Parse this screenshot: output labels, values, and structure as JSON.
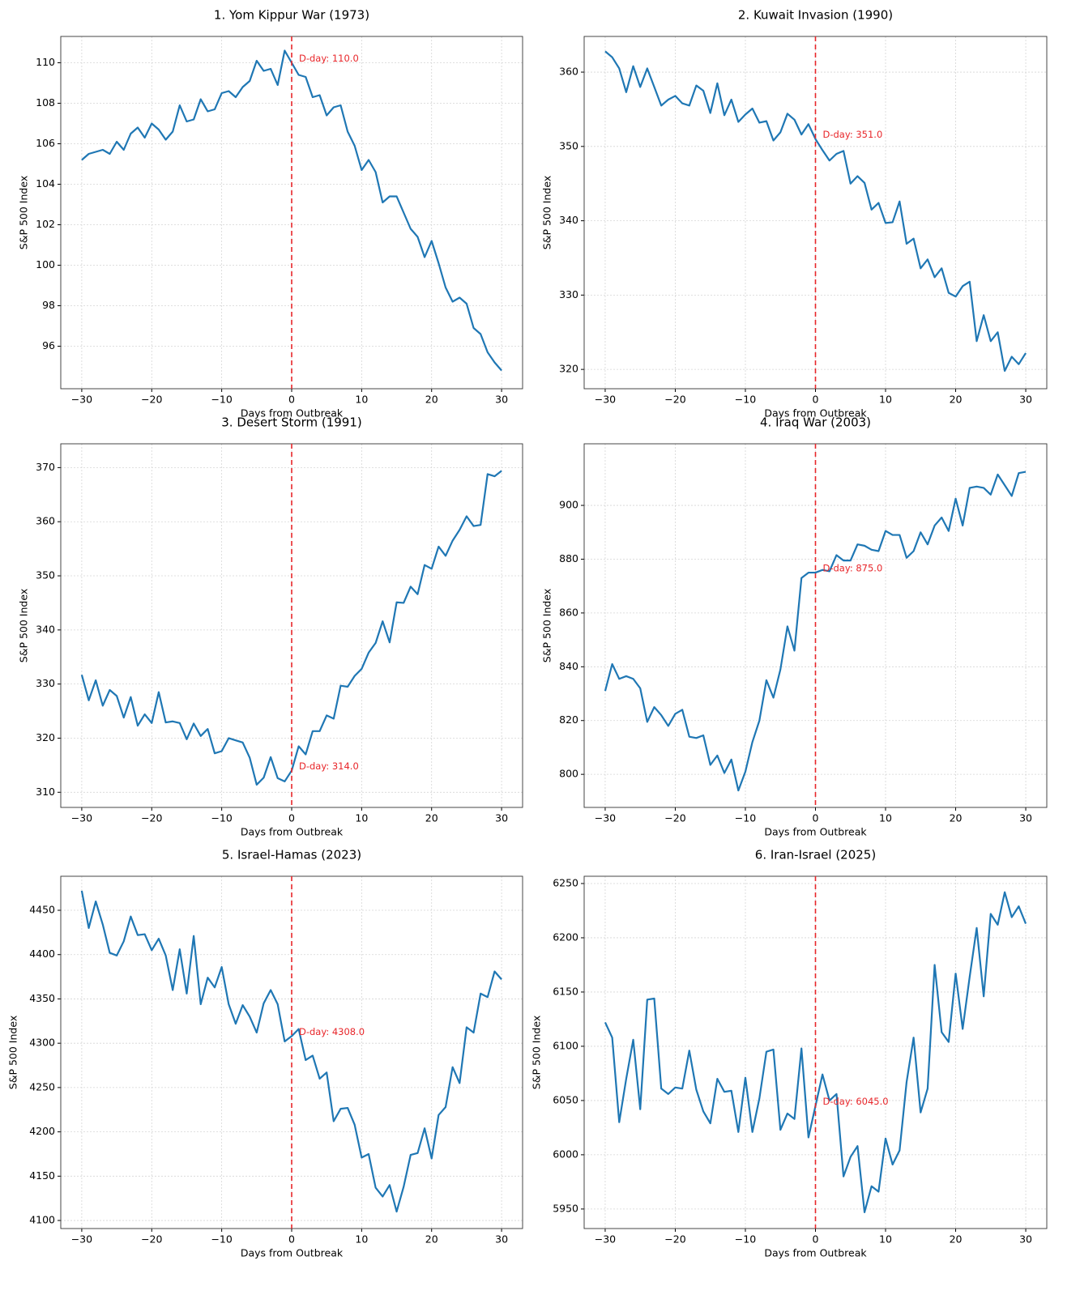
{
  "chart_data": [
    {
      "type": "line",
      "title": "1. Yom Kippur War (1973)",
      "xlabel": "Days from Outbreak",
      "ylabel": "S&P 500 Index",
      "color": "#1f77b4",
      "x": [
        -30,
        -29,
        -28,
        -27,
        -26,
        -25,
        -24,
        -23,
        -22,
        -21,
        -20,
        -19,
        -18,
        -17,
        -16,
        -15,
        -14,
        -13,
        -12,
        -11,
        -10,
        -9,
        -8,
        -7,
        -6,
        -5,
        -4,
        -3,
        -2,
        -1,
        0,
        1,
        2,
        3,
        4,
        5,
        6,
        7,
        8,
        9,
        10,
        11,
        12,
        13,
        14,
        15,
        16,
        17,
        18,
        19,
        20,
        21,
        22,
        23,
        24,
        25,
        26,
        27,
        28,
        29,
        30
      ],
      "values": [
        105.2,
        105.5,
        105.6,
        105.7,
        105.5,
        106.1,
        105.7,
        106.5,
        106.8,
        106.3,
        107.0,
        106.7,
        106.2,
        106.6,
        107.9,
        107.1,
        107.2,
        108.2,
        107.6,
        107.7,
        108.5,
        108.6,
        108.3,
        108.8,
        109.1,
        110.1,
        109.6,
        109.7,
        108.9,
        110.6,
        110.0,
        109.4,
        109.3,
        108.3,
        108.4,
        107.4,
        107.8,
        107.9,
        106.6,
        105.9,
        104.7,
        105.2,
        104.6,
        103.1,
        103.4,
        103.4,
        102.6,
        101.8,
        101.4,
        100.4,
        101.2,
        100.1,
        98.9,
        98.2,
        98.4,
        98.1,
        96.9,
        96.6,
        95.7,
        95.2,
        94.8
      ],
      "vline": 0,
      "vline_color": "#e8262a",
      "annotation": "D-day: 110.0",
      "xlim": [
        -33,
        33
      ],
      "xticks": [
        {
          "value": -30,
          "label": "−30"
        },
        {
          "value": -20,
          "label": "−20"
        },
        {
          "value": -10,
          "label": "−10"
        },
        0,
        10,
        20,
        30
      ],
      "ylim": [
        93.9,
        111.3
      ],
      "yticks": [
        96,
        98,
        100,
        102,
        104,
        106,
        108,
        110
      ],
      "grid": true
    },
    {
      "type": "line",
      "title": "2. Kuwait Invasion (1990)",
      "xlabel": "Days from Outbreak",
      "ylabel": "S&P 500 Index",
      "color": "#1f77b4",
      "x": [
        -30,
        -29,
        -28,
        -27,
        -26,
        -25,
        -24,
        -23,
        -22,
        -21,
        -20,
        -19,
        -18,
        -17,
        -16,
        -15,
        -14,
        -13,
        -12,
        -11,
        -10,
        -9,
        -8,
        -7,
        -6,
        -5,
        -4,
        -3,
        -2,
        -1,
        0,
        1,
        2,
        3,
        4,
        5,
        6,
        7,
        8,
        9,
        10,
        11,
        12,
        13,
        14,
        15,
        16,
        17,
        18,
        19,
        20,
        21,
        22,
        23,
        24,
        25,
        26,
        27,
        28,
        29,
        30
      ],
      "values": [
        362.8,
        362,
        360.5,
        357.3,
        360.8,
        358,
        360.5,
        358,
        355.5,
        356.3,
        356.8,
        355.8,
        355.5,
        358.2,
        357.5,
        354.5,
        358.5,
        354.2,
        356.3,
        353.3,
        354.3,
        355.1,
        353.2,
        353.4,
        350.8,
        351.9,
        354.4,
        353.6,
        351.6,
        353,
        351,
        349.5,
        348.1,
        349,
        349.4,
        345,
        346,
        345.1,
        341.5,
        342.4,
        339.7,
        339.8,
        342.6,
        336.9,
        337.6,
        333.6,
        334.8,
        332.4,
        333.6,
        330.3,
        329.8,
        331.2,
        331.8,
        323.8,
        327.3,
        323.8,
        325,
        319.8,
        321.7,
        320.7,
        322.2
      ],
      "vline": 0,
      "vline_color": "#e8262a",
      "annotation": "D-day: 351.0",
      "xlim": [
        -33,
        33
      ],
      "xticks": [
        {
          "value": -30,
          "label": "−30"
        },
        {
          "value": -20,
          "label": "−20"
        },
        {
          "value": -10,
          "label": "−10"
        },
        0,
        10,
        20,
        30
      ],
      "ylim": [
        317.4,
        364.8
      ],
      "yticks": [
        320,
        330,
        340,
        350,
        360
      ],
      "grid": true
    },
    {
      "type": "line",
      "title": "3. Desert Storm (1991)",
      "xlabel": "Days from Outbreak",
      "ylabel": "S&P 500 Index",
      "color": "#1f77b4",
      "x": [
        -30,
        -29,
        -28,
        -27,
        -26,
        -25,
        -24,
        -23,
        -22,
        -21,
        -20,
        -19,
        -18,
        -17,
        -16,
        -15,
        -14,
        -13,
        -12,
        -11,
        -10,
        -9,
        -8,
        -7,
        -6,
        -5,
        -4,
        -3,
        -2,
        -1,
        0,
        1,
        2,
        3,
        4,
        5,
        6,
        7,
        8,
        9,
        10,
        11,
        12,
        13,
        14,
        15,
        16,
        17,
        18,
        19,
        20,
        21,
        22,
        23,
        24,
        25,
        26,
        27,
        28,
        29,
        30
      ],
      "values": [
        331.7,
        327,
        330.7,
        326,
        328.9,
        327.8,
        323.8,
        327.6,
        322.3,
        324.4,
        322.8,
        328.5,
        322.9,
        323.1,
        322.8,
        319.8,
        322.7,
        320.4,
        321.7,
        317.2,
        317.6,
        320,
        319.6,
        319.2,
        316.4,
        311.4,
        312.7,
        316.5,
        312.6,
        312,
        314,
        318.5,
        317,
        321.3,
        321.3,
        324.2,
        323.6,
        329.7,
        329.5,
        331.5,
        332.8,
        335.8,
        337.6,
        341.6,
        337.7,
        345.1,
        345,
        348,
        346.6,
        352,
        351.3,
        355.4,
        353.7,
        356.5,
        358.5,
        361,
        359.2,
        359.4,
        368.8,
        368.4,
        369.4
      ],
      "vline": 0,
      "vline_color": "#e8262a",
      "annotation": "D-day: 314.0",
      "xlim": [
        -33,
        33
      ],
      "xticks": [
        {
          "value": -30,
          "label": "−30"
        },
        {
          "value": -20,
          "label": "−20"
        },
        {
          "value": -10,
          "label": "−10"
        },
        0,
        10,
        20,
        30
      ],
      "ylim": [
        307.2,
        374.4
      ],
      "yticks": [
        310,
        320,
        330,
        340,
        350,
        360,
        370
      ],
      "grid": true
    },
    {
      "type": "line",
      "title": "4. Iraq War (2003)",
      "xlabel": "Days from Outbreak",
      "ylabel": "S&P 500 Index",
      "color": "#1f77b4",
      "x": [
        -30,
        -29,
        -28,
        -27,
        -26,
        -25,
        -24,
        -23,
        -22,
        -21,
        -20,
        -19,
        -18,
        -17,
        -16,
        -15,
        -14,
        -13,
        -12,
        -11,
        -10,
        -9,
        -8,
        -7,
        -6,
        -5,
        -4,
        -3,
        -2,
        -1,
        0,
        1,
        2,
        3,
        4,
        5,
        6,
        7,
        8,
        9,
        10,
        11,
        12,
        13,
        14,
        15,
        16,
        17,
        18,
        19,
        20,
        21,
        22,
        23,
        24,
        25,
        26,
        27,
        28,
        29,
        30
      ],
      "values": [
        831,
        841,
        835.5,
        836.5,
        835.5,
        832,
        819.5,
        825,
        822,
        818,
        822.5,
        824,
        814,
        813.5,
        814.5,
        803.5,
        807,
        800.5,
        805.5,
        794,
        801,
        812,
        820,
        835,
        828.5,
        839,
        855,
        846,
        873,
        875,
        875,
        876,
        875.5,
        881.5,
        879.5,
        879.5,
        885.5,
        885,
        883.5,
        883,
        890.5,
        889,
        889,
        880.5,
        883,
        890,
        885.5,
        892.5,
        895.5,
        890.5,
        902.5,
        892.5,
        906.5,
        907,
        906.5,
        904,
        911.5,
        907.5,
        903.5,
        912,
        912.5
      ],
      "vline": 0,
      "vline_color": "#e8262a",
      "annotation": "D-day: 875.0",
      "xlim": [
        -33,
        33
      ],
      "xticks": [
        {
          "value": -30,
          "label": "−30"
        },
        {
          "value": -20,
          "label": "−20"
        },
        {
          "value": -10,
          "label": "−10"
        },
        0,
        10,
        20,
        30
      ],
      "ylim": [
        787.7,
        922.9
      ],
      "yticks": [
        800,
        820,
        840,
        860,
        880,
        900
      ],
      "grid": true
    },
    {
      "type": "line",
      "title": "5. Israel-Hamas (2023)",
      "xlabel": "Days from Outbreak",
      "ylabel": "S&P 500 Index",
      "color": "#1f77b4",
      "x": [
        -30,
        -29,
        -28,
        -27,
        -26,
        -25,
        -24,
        -23,
        -22,
        -21,
        -20,
        -19,
        -18,
        -17,
        -16,
        -15,
        -14,
        -13,
        -12,
        -11,
        -10,
        -9,
        -8,
        -7,
        -6,
        -5,
        -4,
        -3,
        -2,
        -1,
        0,
        1,
        2,
        3,
        4,
        5,
        6,
        7,
        8,
        9,
        10,
        11,
        12,
        13,
        14,
        15,
        16,
        17,
        18,
        19,
        20,
        21,
        22,
        23,
        24,
        25,
        26,
        27,
        28,
        29,
        30
      ],
      "values": [
        4472,
        4430,
        4460,
        4434,
        4402,
        4399,
        4415,
        4443,
        4422,
        4423,
        4405,
        4418,
        4399,
        4360,
        4406,
        4356,
        4421,
        4344,
        4374,
        4363,
        4386,
        4344,
        4322,
        4343,
        4330,
        4312,
        4345,
        4360,
        4344,
        4302,
        4308,
        4316,
        4281,
        4286,
        4260,
        4267,
        4212,
        4226,
        4227,
        4208,
        4171,
        4175,
        4137,
        4127,
        4140,
        4110,
        4138,
        4174,
        4176,
        4204,
        4170,
        4219,
        4228,
        4273,
        4255,
        4318,
        4312,
        4356,
        4352,
        4381,
        4372
      ],
      "vline": 0,
      "vline_color": "#e8262a",
      "annotation": "D-day: 4308.0",
      "xlim": [
        -33,
        33
      ],
      "xticks": [
        {
          "value": -30,
          "label": "−30"
        },
        {
          "value": -20,
          "label": "−20"
        },
        {
          "value": -10,
          "label": "−10"
        },
        0,
        10,
        20,
        30
      ],
      "ylim": [
        4090.9,
        4488.4
      ],
      "yticks": [
        4100,
        4150,
        4200,
        4250,
        4300,
        4350,
        4400,
        4450
      ],
      "grid": true
    },
    {
      "type": "line",
      "title": "6. Iran-Israel (2025)",
      "xlabel": "Days from Outbreak",
      "ylabel": "S&P 500 Index",
      "color": "#1f77b4",
      "x": [
        -30,
        -29,
        -28,
        -27,
        -26,
        -25,
        -24,
        -23,
        -22,
        -21,
        -20,
        -19,
        -18,
        -17,
        -16,
        -15,
        -14,
        -13,
        -12,
        -11,
        -10,
        -9,
        -8,
        -7,
        -6,
        -5,
        -4,
        -3,
        -2,
        -1,
        0,
        1,
        2,
        3,
        4,
        5,
        6,
        7,
        8,
        9,
        10,
        11,
        12,
        13,
        14,
        15,
        16,
        17,
        18,
        19,
        20,
        21,
        22,
        23,
        24,
        25,
        26,
        27,
        28,
        29,
        30
      ],
      "values": [
        6122,
        6108,
        6030,
        6070,
        6106,
        6042,
        6143,
        6144,
        6061,
        6056,
        6062,
        6061,
        6096,
        6060,
        6040,
        6029,
        6070,
        6058,
        6059,
        6021,
        6071,
        6021,
        6052,
        6095,
        6097,
        6023,
        6038,
        6033,
        6098,
        6016,
        6045,
        6074,
        6050,
        6056,
        5980,
        5998,
        6008,
        5947,
        5971,
        5966,
        6015,
        5991,
        6004,
        6067,
        6108,
        6039,
        6061,
        6175,
        6113,
        6104,
        6167,
        6116,
        6164,
        6209,
        6146,
        6222,
        6212,
        6242,
        6219,
        6229,
        6213
      ],
      "vline": 0,
      "vline_color": "#e8262a",
      "annotation": "D-day: 6045.0",
      "xlim": [
        -33,
        33
      ],
      "xticks": [
        {
          "value": -30,
          "label": "−30"
        },
        {
          "value": -20,
          "label": "−20"
        },
        {
          "value": -10,
          "label": "−10"
        },
        0,
        10,
        20,
        30
      ],
      "ylim": [
        5932,
        6256.7
      ],
      "yticks": [
        5950,
        6000,
        6050,
        6100,
        6150,
        6200,
        6250
      ],
      "grid": true
    }
  ]
}
